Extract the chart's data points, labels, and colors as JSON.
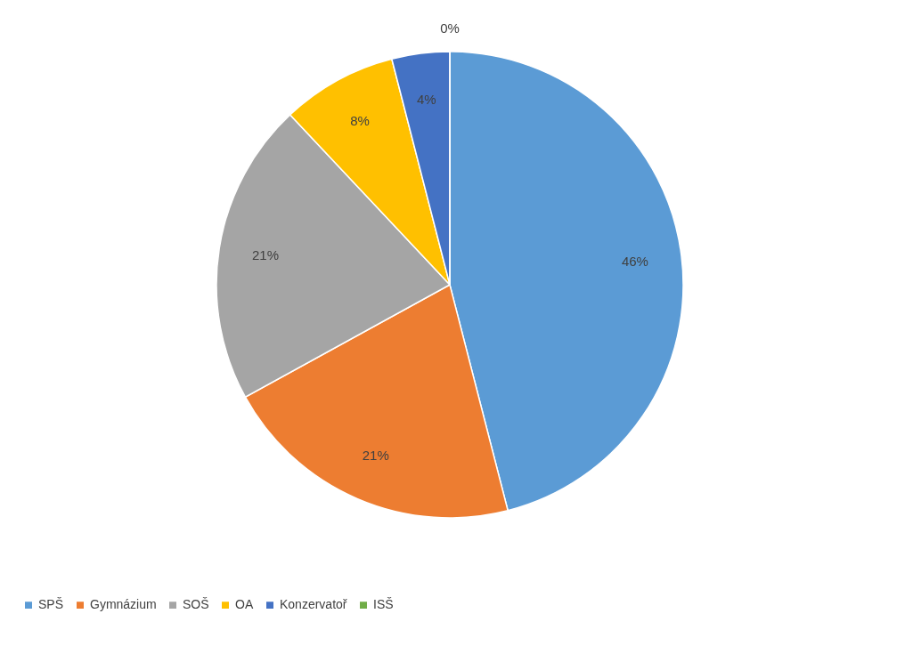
{
  "chart_data": {
    "type": "pie",
    "categories": [
      "SPŠ",
      "Gymnázium",
      "SOŠ",
      "OA",
      "Konzervatoř",
      "ISŠ"
    ],
    "values": [
      46,
      21,
      21,
      8,
      4,
      0
    ],
    "value_labels": [
      "46%",
      "21%",
      "21%",
      "8%",
      "4%",
      "0%"
    ],
    "colors": [
      "#5b9bd5",
      "#ed7d31",
      "#a5a5a5",
      "#ffc000",
      "#4472c4",
      "#70ad47"
    ],
    "legend": "bottom"
  }
}
